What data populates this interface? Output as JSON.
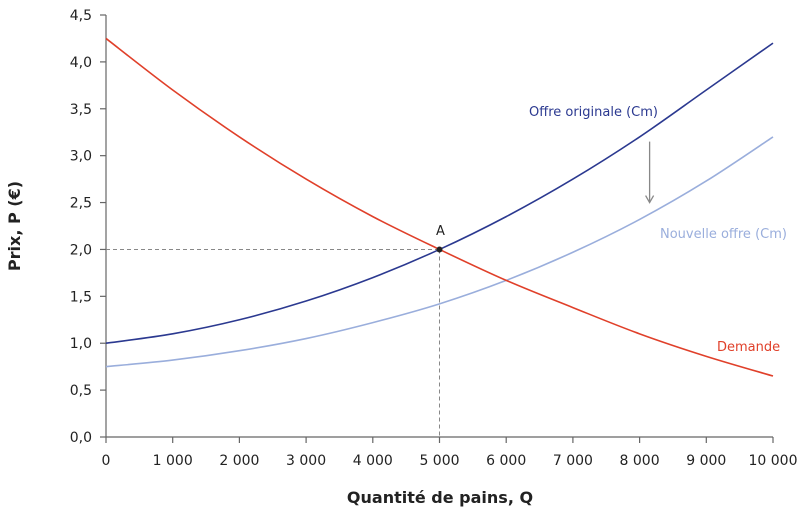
{
  "chart_data": {
    "type": "line",
    "title": "",
    "xlabel": "Quantité de pains, Q",
    "ylabel": "Prix, P (€)",
    "xlim": [
      0,
      10000
    ],
    "ylim": [
      0,
      4.5
    ],
    "x_ticks": [
      "0",
      "1 000",
      "2 000",
      "3 000",
      "4 000",
      "5 000",
      "6 000",
      "7 000",
      "8 000",
      "9 000",
      "10 000"
    ],
    "y_ticks": [
      "0,0",
      "0,5",
      "1,0",
      "1,5",
      "2,0",
      "2,5",
      "3,0",
      "3,5",
      "4,0",
      "4,5"
    ],
    "grid": false,
    "series": [
      {
        "name": "Offre originale (Cm)",
        "color": "#2b3990",
        "x": [
          0,
          1000,
          2000,
          3000,
          4000,
          5000,
          6000,
          7000,
          8000,
          9000,
          10000
        ],
        "y": [
          1.0,
          1.1,
          1.25,
          1.45,
          1.7,
          2.0,
          2.35,
          2.75,
          3.2,
          3.7,
          4.2
        ]
      },
      {
        "name": "Nouvelle offre (Cm)",
        "color": "#9aaedc",
        "x": [
          0,
          1000,
          2000,
          3000,
          4000,
          5000,
          6000,
          7000,
          8000,
          9000,
          10000
        ],
        "y": [
          0.75,
          0.82,
          0.92,
          1.05,
          1.22,
          1.42,
          1.67,
          1.97,
          2.32,
          2.73,
          3.2
        ]
      },
      {
        "name": "Demande",
        "color": "#e0402a",
        "x": [
          0,
          1000,
          2000,
          3000,
          4000,
          5000,
          6000,
          7000,
          8000,
          9000,
          10000
        ],
        "y": [
          4.25,
          3.7,
          3.2,
          2.75,
          2.35,
          2.0,
          1.67,
          1.38,
          1.1,
          0.86,
          0.65
        ]
      }
    ],
    "annotations": [
      {
        "type": "point",
        "label": "A",
        "x": 5000,
        "y": 2.0
      },
      {
        "type": "arrow",
        "description": "downward shift of supply",
        "x": 8150,
        "y_from": 3.15,
        "y_to": 2.5
      }
    ]
  },
  "labels": {
    "point_a": "A",
    "offre_originale": "Offre originale (Cm)",
    "nouvelle_offre": "Nouvelle offre (Cm)",
    "demande": "Demande",
    "xlabel": "Quantité de pains, Q",
    "ylabel": "Prix, P (€)"
  }
}
